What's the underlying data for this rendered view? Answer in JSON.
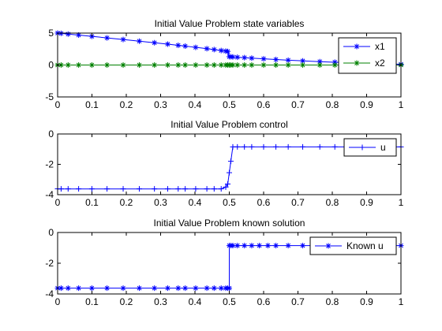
{
  "figure": {
    "background": "#ffffff"
  },
  "chart_data": [
    {
      "type": "line",
      "title": "Initial Value Problem state variables",
      "xlabel": "",
      "ylabel": "",
      "xlim": [
        0,
        1
      ],
      "ylim": [
        -5,
        5
      ],
      "xticks": [
        "0",
        "0.1",
        "0.2",
        "0.3",
        "0.4",
        "0.5",
        "0.6",
        "0.7",
        "0.8",
        "0.9",
        "1"
      ],
      "yticks": [
        "-5",
        "0",
        "5"
      ],
      "grid": false,
      "legend_position": "top-right",
      "series": [
        {
          "name": "x1",
          "color": "#0000ff",
          "marker": "asterisk",
          "x": [
            0,
            0.0102,
            0.0306,
            0.0612,
            0.0998,
            0.1439,
            0.1909,
            0.2379,
            0.282,
            0.3206,
            0.3512,
            0.3716,
            0.4021,
            0.4347,
            0.4559,
            0.4764,
            0.4897,
            0.4955,
            0.5,
            0.5045,
            0.5103,
            0.5236,
            0.5441,
            0.5653,
            0.6,
            0.6358,
            0.6716,
            0.7139,
            0.7637,
            0.8074,
            0.8525,
            0.8991,
            0.9432,
            0.9795,
            1.0
          ],
          "y": [
            5.0,
            4.95,
            4.85,
            4.69,
            4.49,
            4.25,
            3.99,
            3.74,
            3.49,
            3.27,
            3.09,
            2.96,
            2.77,
            2.56,
            2.42,
            2.27,
            2.17,
            2.13,
            1.31,
            1.3,
            1.27,
            1.22,
            1.15,
            1.08,
            0.97,
            0.86,
            0.76,
            0.65,
            0.53,
            0.44,
            0.35,
            0.27,
            0.21,
            0.16,
            0.13
          ]
        },
        {
          "name": "x2",
          "color": "#008000",
          "marker": "asterisk",
          "x": [
            0,
            0.0102,
            0.0306,
            0.0612,
            0.0998,
            0.1439,
            0.1909,
            0.2379,
            0.282,
            0.3206,
            0.3512,
            0.3716,
            0.4021,
            0.4347,
            0.4559,
            0.4764,
            0.4897,
            0.4955,
            0.5,
            0.5045,
            0.5103,
            0.5236,
            0.5441,
            0.5653,
            0.6,
            0.6358,
            0.6716,
            0.7139,
            0.7637,
            0.8074,
            0.8525,
            0.8991,
            0.9432,
            0.9795,
            1.0
          ],
          "y": [
            0,
            0,
            0,
            0,
            0,
            0,
            0,
            0,
            0,
            0,
            0,
            0,
            0,
            0,
            0,
            0,
            0,
            0,
            0,
            0,
            0,
            0,
            0,
            0,
            0,
            0,
            0,
            0,
            0,
            0,
            0,
            0,
            0,
            0,
            0
          ]
        }
      ]
    },
    {
      "type": "line",
      "title": "Initial Value Problem control",
      "xlabel": "",
      "ylabel": "",
      "xlim": [
        0,
        1
      ],
      "ylim": [
        -4,
        0
      ],
      "xticks": [
        "0",
        "0.1",
        "0.2",
        "0.3",
        "0.4",
        "0.5",
        "0.6",
        "0.7",
        "0.8",
        "0.9",
        "1"
      ],
      "yticks": [
        "-4",
        "-2",
        "0"
      ],
      "grid": false,
      "legend_position": "top-right",
      "series": [
        {
          "name": "u",
          "color": "#0000ff",
          "marker": "plus",
          "x": [
            0,
            0.0102,
            0.0306,
            0.0612,
            0.0998,
            0.1439,
            0.1909,
            0.2379,
            0.282,
            0.3206,
            0.3512,
            0.3716,
            0.4021,
            0.4347,
            0.4559,
            0.4764,
            0.4897,
            0.4955,
            0.5,
            0.5045,
            0.5103,
            0.5236,
            0.5441,
            0.5653,
            0.6,
            0.6358,
            0.6716,
            0.7139,
            0.7637,
            0.8074,
            0.8525,
            0.8991,
            0.9432,
            0.9795,
            1.0
          ],
          "y": [
            -3.62,
            -3.62,
            -3.62,
            -3.62,
            -3.62,
            -3.62,
            -3.62,
            -3.62,
            -3.62,
            -3.62,
            -3.62,
            -3.62,
            -3.62,
            -3.62,
            -3.62,
            -3.62,
            -3.5,
            -3.3,
            -2.55,
            -1.8,
            -0.85,
            -0.85,
            -0.85,
            -0.85,
            -0.85,
            -0.85,
            -0.85,
            -0.85,
            -0.85,
            -0.85,
            -0.85,
            -0.85,
            -0.85,
            -0.85,
            -0.85
          ]
        }
      ]
    },
    {
      "type": "line",
      "title": "Initial Value Problem known solution",
      "xlabel": "",
      "ylabel": "",
      "xlim": [
        0,
        1
      ],
      "ylim": [
        -4,
        0
      ],
      "xticks": [
        "0",
        "0.1",
        "0.2",
        "0.3",
        "0.4",
        "0.5",
        "0.6",
        "0.7",
        "0.8",
        "0.9",
        "1"
      ],
      "yticks": [
        "-4",
        "-2",
        "0"
      ],
      "grid": false,
      "legend_position": "top-right",
      "series": [
        {
          "name": "Known u",
          "color": "#0000ff",
          "marker": "asterisk",
          "x": [
            0,
            0.0102,
            0.0306,
            0.0612,
            0.0998,
            0.1439,
            0.1909,
            0.2379,
            0.282,
            0.3206,
            0.3512,
            0.3716,
            0.4021,
            0.4347,
            0.4559,
            0.4764,
            0.4897,
            0.4955,
            0.5,
            0.5,
            0.5045,
            0.5103,
            0.5236,
            0.5441,
            0.5653,
            0.5875,
            0.6124,
            0.6358,
            0.6716,
            0.7139,
            0.7637,
            0.8074,
            0.8525,
            0.8991,
            0.9432,
            0.9795,
            1.0
          ],
          "y": [
            -3.62,
            -3.62,
            -3.62,
            -3.62,
            -3.62,
            -3.62,
            -3.62,
            -3.62,
            -3.62,
            -3.62,
            -3.62,
            -3.62,
            -3.62,
            -3.62,
            -3.62,
            -3.62,
            -3.62,
            -3.62,
            -3.62,
            -0.85,
            -0.85,
            -0.85,
            -0.85,
            -0.85,
            -0.85,
            -0.85,
            -0.85,
            -0.85,
            -0.85,
            -0.85,
            -0.85,
            -0.85,
            -0.85,
            -0.85,
            -0.85,
            -0.85,
            -0.85
          ]
        }
      ]
    }
  ]
}
